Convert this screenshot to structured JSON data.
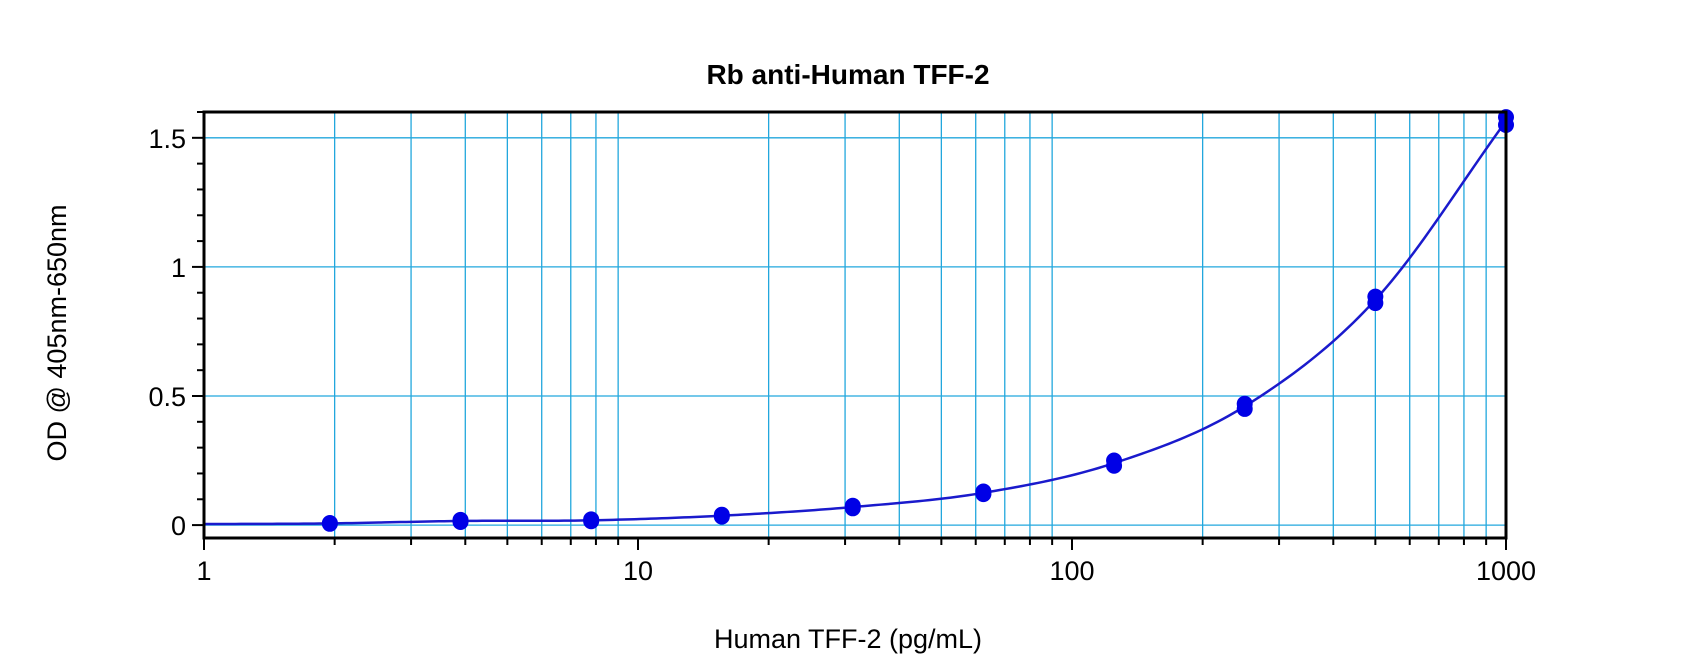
{
  "chart_data": {
    "type": "scatter",
    "title": "Rb anti-Human TFF-2",
    "xlabel": "Human TFF-2 (pg/mL)",
    "ylabel": "OD @ 405nm-650nm",
    "xscale": "log",
    "xlim": [
      1,
      1000
    ],
    "ylim": [
      -0.05,
      1.6
    ],
    "x_ticks": [
      {
        "value": 1,
        "label": "1"
      },
      {
        "value": 10,
        "label": "10"
      },
      {
        "value": 100,
        "label": "100"
      },
      {
        "value": 1000,
        "label": "1000"
      }
    ],
    "y_ticks": [
      {
        "value": 0,
        "label": "0"
      },
      {
        "value": 0.5,
        "label": "0.5"
      },
      {
        "value": 1,
        "label": "1"
      },
      {
        "value": 1.5,
        "label": "1.5"
      }
    ],
    "grid": true,
    "colors": {
      "grid": "#22a7dd",
      "points": "#0000e6",
      "curve": "#1a1acc",
      "frame": "#000000"
    },
    "series": [
      {
        "values": [
          {
            "x": 1.95,
            "y": 0.005
          },
          {
            "x": 1.95,
            "y": 0.008
          },
          {
            "x": 3.9,
            "y": 0.012
          },
          {
            "x": 3.9,
            "y": 0.02
          },
          {
            "x": 7.8,
            "y": 0.015
          },
          {
            "x": 7.8,
            "y": 0.022
          },
          {
            "x": 15.6,
            "y": 0.033
          },
          {
            "x": 15.6,
            "y": 0.04
          },
          {
            "x": 31.25,
            "y": 0.065
          },
          {
            "x": 31.25,
            "y": 0.075
          },
          {
            "x": 62.5,
            "y": 0.12
          },
          {
            "x": 62.5,
            "y": 0.13
          },
          {
            "x": 125,
            "y": 0.23
          },
          {
            "x": 125,
            "y": 0.25
          },
          {
            "x": 250,
            "y": 0.45
          },
          {
            "x": 250,
            "y": 0.47
          },
          {
            "x": 500,
            "y": 0.86
          },
          {
            "x": 500,
            "y": 0.885
          },
          {
            "x": 1000,
            "y": 1.55
          },
          {
            "x": 1000,
            "y": 1.58
          }
        ]
      }
    ]
  }
}
